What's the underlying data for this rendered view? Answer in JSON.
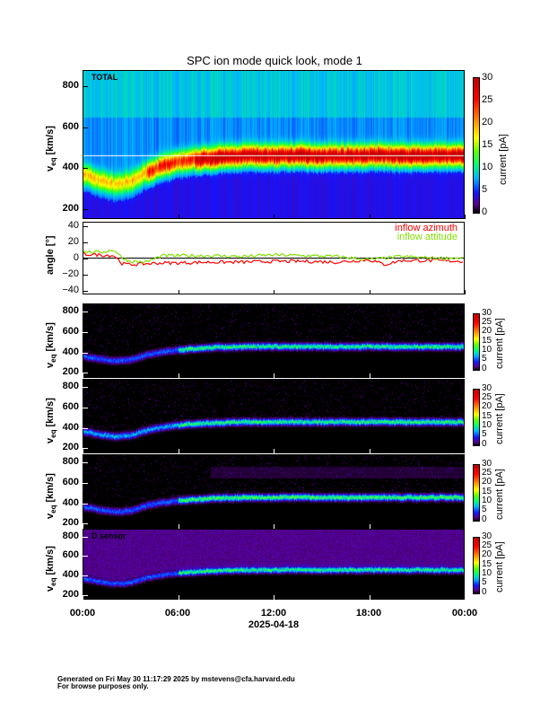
{
  "title": "SPC ion mode quick look, mode 1",
  "x_axis": {
    "ticks": [
      "00:00",
      "06:00",
      "12:00",
      "18:00",
      "00:00"
    ],
    "date": "2025-04-18"
  },
  "footer": {
    "line1": "Generated on Fri May 30 11:17:29 2025 by mstevens@cfa.harvard.edu",
    "line2": "For browse purposes only."
  },
  "colors": {
    "azimuth": "#ff0000",
    "attitude": "#80e000"
  },
  "chart_data": [
    {
      "type": "heatmap",
      "label": "TOTAL",
      "ylabel_main": "v",
      "ylabel_sub": "eq",
      "ylabel_unit": "[km/s]",
      "yticks": [
        "800",
        "600",
        "400",
        "200"
      ],
      "ylim": [
        150,
        880
      ],
      "xlim_hours": [
        0,
        24
      ],
      "colorbar": {
        "label": "current [pA]",
        "ticks": [
          "30",
          "25",
          "20",
          "15",
          "10",
          "5",
          "0"
        ],
        "range": [
          0,
          30
        ]
      },
      "peak_speed_by_hour": [
        370,
        340,
        320,
        330,
        380,
        410,
        430,
        440,
        450,
        455,
        460,
        460,
        460,
        462,
        462,
        460,
        460,
        460,
        462,
        462,
        460,
        460,
        460,
        460,
        460
      ]
    },
    {
      "type": "line",
      "ylabel": "angle [°]",
      "yticks": [
        "40",
        "20",
        "0",
        "−20",
        "−40"
      ],
      "ylim": [
        -45,
        45
      ],
      "series": [
        {
          "name": "inflow azimuth",
          "hours": [
            0,
            1,
            2,
            2.5,
            3,
            4,
            5,
            6,
            8,
            10,
            12,
            14,
            16,
            18,
            19,
            20,
            22,
            24
          ],
          "values": [
            5,
            4,
            3,
            -7,
            -8,
            -7,
            -6,
            -6,
            -5,
            -5,
            -4,
            -4,
            -5,
            -2,
            -8,
            -3,
            -3,
            -4
          ]
        },
        {
          "name": "inflow attitude",
          "hours": [
            0,
            1,
            2,
            2.5,
            3,
            4,
            5,
            6,
            8,
            10,
            12,
            14,
            16,
            18,
            19,
            20,
            22,
            24
          ],
          "values": [
            8,
            7,
            10,
            0,
            -4,
            -5,
            3,
            3,
            3,
            2,
            4,
            3,
            2,
            -2,
            0,
            2,
            0,
            0
          ]
        }
      ]
    },
    {
      "type": "heatmap",
      "label": "",
      "ylabel_main": "v",
      "ylabel_sub": "eq",
      "ylabel_unit": "[km/s]",
      "yticks": [
        "800",
        "600",
        "400",
        "200"
      ],
      "ylim": [
        150,
        880
      ],
      "colorbar": {
        "label": "current [pA]",
        "ticks": [
          "30",
          "25",
          "20",
          "15",
          "10",
          "5",
          "0"
        ],
        "range": [
          0,
          30
        ]
      }
    },
    {
      "type": "heatmap",
      "label": "",
      "ylabel_main": "v",
      "ylabel_sub": "eq",
      "ylabel_unit": "[km/s]",
      "yticks": [
        "800",
        "600",
        "400",
        "200"
      ],
      "ylim": [
        150,
        880
      ],
      "colorbar": {
        "label": "current [pA]",
        "ticks": [
          "30",
          "25",
          "20",
          "15",
          "10",
          "5",
          "0"
        ],
        "range": [
          0,
          30
        ]
      }
    },
    {
      "type": "heatmap",
      "label": "",
      "ylabel_main": "v",
      "ylabel_sub": "eq",
      "ylabel_unit": "[km/s]",
      "yticks": [
        "800",
        "600",
        "400",
        "200"
      ],
      "ylim": [
        150,
        880
      ],
      "colorbar": {
        "label": "current [pA]",
        "ticks": [
          "30",
          "25",
          "20",
          "15",
          "10",
          "5",
          "0"
        ],
        "range": [
          0,
          30
        ]
      }
    },
    {
      "type": "heatmap",
      "label": "D sensor",
      "ylabel_main": "v",
      "ylabel_sub": "eq",
      "ylabel_unit": "[km/s]",
      "yticks": [
        "800",
        "600",
        "400",
        "200"
      ],
      "ylim": [
        150,
        880
      ],
      "colorbar": {
        "label": "current [pA]",
        "ticks": [
          "30",
          "25",
          "20",
          "15",
          "10",
          "5",
          "0"
        ],
        "range": [
          0,
          30
        ]
      }
    }
  ]
}
